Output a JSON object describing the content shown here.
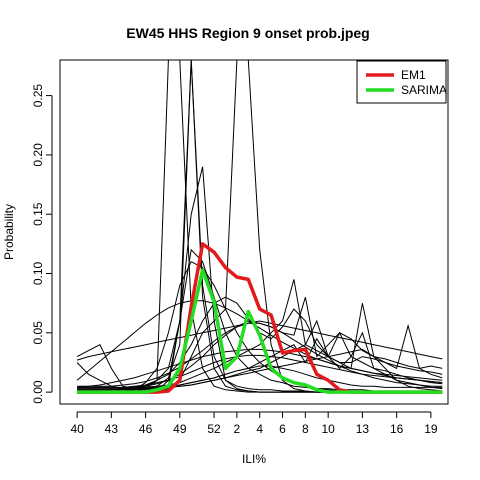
{
  "chart_data": {
    "type": "line",
    "title": "EW45 HHS Region 9 onset prob.jpeg",
    "xlabel": "ILI%",
    "ylabel": "Probability",
    "x_tick_labels": [
      "40",
      "43",
      "46",
      "49",
      "52",
      "2",
      "4",
      "6",
      "8",
      "10",
      "13",
      "16",
      "19"
    ],
    "x_tick_index": [
      0,
      3,
      6,
      9,
      12,
      14,
      16,
      18,
      20,
      22,
      25,
      28,
      31
    ],
    "x_domain": [
      -1.5,
      32.5
    ],
    "ylim": [
      -0.01,
      0.28
    ],
    "y_ticks": [
      "0.00",
      "0.05",
      "0.10",
      "0.15",
      "0.20",
      "0.25"
    ],
    "y_tick_values": [
      0,
      0.05,
      0.1,
      0.15,
      0.2,
      0.25
    ],
    "legend_position": "top-right",
    "series": [
      {
        "name": "EM1",
        "color": "#e31a1c",
        "values": [
          0,
          0,
          0,
          0,
          0,
          0,
          0,
          0,
          0.001,
          0.01,
          0.072,
          0.125,
          0.118,
          0.105,
          0.097,
          0.095,
          0.07,
          0.065,
          0.033,
          0.035,
          0.036,
          0.015,
          0.01,
          0.002,
          0,
          0,
          0,
          0,
          0,
          0,
          0,
          0,
          0
        ]
      },
      {
        "name": "SARIMA",
        "color": "#22dd22",
        "values": [
          0,
          0,
          0,
          0,
          0,
          0,
          0,
          0.002,
          0.005,
          0.02,
          0.06,
          0.103,
          0.076,
          0.02,
          0.03,
          0.068,
          0.048,
          0.02,
          0.012,
          0.008,
          0.006,
          0.002,
          0,
          0,
          0,
          0,
          0,
          0,
          0,
          0,
          0,
          0,
          0
        ]
      }
    ],
    "background_series_color": "#000000",
    "background_series": [
      [
        0.004,
        0.004,
        0.004,
        0.004,
        0.004,
        0.004,
        0.004,
        0.005,
        0.005,
        0.006,
        0.008,
        0.01,
        0.012,
        0.015,
        0.018,
        0.02,
        0.022,
        0.022,
        0.02,
        0.018,
        0.015,
        0.012,
        0.01,
        0.008,
        0.006,
        0.005,
        0.005,
        0.004,
        0.004,
        0.004,
        0.004,
        0.004,
        0.004
      ],
      [
        0.01,
        0.018,
        0.026,
        0.034,
        0.042,
        0.05,
        0.058,
        0.065,
        0.071,
        0.075,
        0.077,
        0.077,
        0.075,
        0.071,
        0.066,
        0.06,
        0.054,
        0.048,
        0.042,
        0.037,
        0.032,
        0.028,
        0.025,
        0.022,
        0.02,
        0.018,
        0.016,
        0.015,
        0.014,
        0.013,
        0.012,
        0.011,
        0.01
      ],
      [
        0.004,
        0.005,
        0.006,
        0.008,
        0.01,
        0.012,
        0.015,
        0.018,
        0.021,
        0.024,
        0.027,
        0.03,
        0.032,
        0.034,
        0.035,
        0.036,
        0.036,
        0.035,
        0.034,
        0.032,
        0.03,
        0.028,
        0.025,
        0.022,
        0.02,
        0.018,
        0.016,
        0.014,
        0.012,
        0.011,
        0.01,
        0.009,
        0.008
      ],
      [
        0.03,
        0.035,
        0.04,
        0.02,
        0.005,
        0.003,
        0.005,
        0.01,
        0.02,
        0.06,
        0.12,
        0.11,
        0.08,
        0.05,
        0.03,
        0.02,
        0.015,
        0.01,
        0.008,
        0.005,
        0.004,
        0.003,
        0.003,
        0.002,
        0.002,
        0.002,
        0.001,
        0.001,
        0.001,
        0.001,
        0.001,
        0.001,
        0.001
      ],
      [
        0.025,
        0.015,
        0.01,
        0.005,
        0.003,
        0.003,
        0.003,
        0.005,
        0.012,
        0.04,
        0.28,
        0.09,
        0.03,
        0.01,
        0.005,
        0.003,
        0.002,
        0.002,
        0.001,
        0.001,
        0.001,
        0,
        0,
        0,
        0,
        0,
        0,
        0,
        0,
        0,
        0,
        0,
        0
      ],
      [
        0,
        0,
        0,
        0,
        0,
        0,
        0,
        0.002,
        0.005,
        0.06,
        0.28,
        0.08,
        0.02,
        0.005,
        0.002,
        0.001,
        0,
        0,
        0,
        0,
        0,
        0,
        0,
        0,
        0,
        0,
        0,
        0,
        0,
        0,
        0,
        0,
        0
      ],
      [
        0,
        0,
        0,
        0,
        0,
        0,
        0.003,
        0.01,
        0.28,
        0.28,
        0.07,
        0.02,
        0.005,
        0.002,
        0.001,
        0,
        0,
        0,
        0,
        0,
        0,
        0,
        0,
        0,
        0,
        0,
        0,
        0,
        0,
        0,
        0,
        0,
        0
      ],
      [
        0,
        0,
        0,
        0,
        0,
        0,
        0,
        0.001,
        0.003,
        0.01,
        0.03,
        0.05,
        0.06,
        0.07,
        0.28,
        0.28,
        0.12,
        0.04,
        0.01,
        0.003,
        0.001,
        0,
        0,
        0,
        0,
        0,
        0,
        0,
        0,
        0,
        0,
        0,
        0
      ],
      [
        0,
        0,
        0,
        0,
        0,
        0,
        0,
        0.001,
        0.01,
        0.06,
        0.15,
        0.19,
        0.06,
        0.01,
        0.003,
        0.001,
        0,
        0,
        0,
        0,
        0,
        0,
        0,
        0,
        0,
        0,
        0,
        0,
        0,
        0,
        0,
        0,
        0
      ],
      [
        0,
        0,
        0,
        0,
        0,
        0.002,
        0.008,
        0.02,
        0.05,
        0.09,
        0.11,
        0.105,
        0.09,
        0.07,
        0.05,
        0.035,
        0.025,
        0.018,
        0.012,
        0.008,
        0.005,
        0.003,
        0.002,
        0.001,
        0.001,
        0,
        0,
        0,
        0,
        0,
        0,
        0,
        0
      ],
      [
        0.002,
        0.002,
        0.002,
        0.002,
        0.003,
        0.004,
        0.006,
        0.01,
        0.015,
        0.025,
        0.04,
        0.06,
        0.075,
        0.08,
        0.075,
        0.062,
        0.05,
        0.045,
        0.055,
        0.07,
        0.06,
        0.04,
        0.03,
        0.025,
        0.025,
        0.03,
        0.028,
        0.025,
        0.022,
        0.02,
        0.018,
        0.017,
        0.015
      ],
      [
        0.003,
        0.003,
        0.003,
        0.003,
        0.003,
        0.004,
        0.005,
        0.007,
        0.01,
        0.015,
        0.022,
        0.03,
        0.04,
        0.048,
        0.055,
        0.06,
        0.058,
        0.055,
        0.05,
        0.048,
        0.08,
        0.03,
        0.04,
        0.05,
        0.045,
        0.035,
        0.03,
        0.028,
        0.025,
        0.022,
        0.02,
        0.022,
        0.02
      ],
      [
        0.002,
        0.002,
        0.002,
        0.002,
        0.002,
        0.003,
        0.004,
        0.005,
        0.006,
        0.008,
        0.012,
        0.016,
        0.02,
        0.025,
        0.03,
        0.035,
        0.04,
        0.05,
        0.06,
        0.095,
        0.04,
        0.035,
        0.03,
        0.05,
        0.03,
        0.025,
        0.02,
        0.018,
        0.015,
        0.012,
        0.01,
        0.008,
        0.007
      ],
      [
        0.001,
        0.001,
        0.001,
        0.001,
        0.001,
        0.002,
        0.003,
        0.004,
        0.005,
        0.006,
        0.008,
        0.01,
        0.012,
        0.015,
        0.018,
        0.02,
        0.025,
        0.03,
        0.035,
        0.04,
        0.025,
        0.045,
        0.03,
        0.02,
        0.03,
        0.05,
        0.02,
        0.015,
        0.01,
        0.008,
        0.006,
        0.004,
        0.003
      ],
      [
        0.001,
        0.001,
        0.001,
        0.001,
        0.001,
        0.002,
        0.002,
        0.003,
        0.004,
        0.005,
        0.006,
        0.008,
        0.01,
        0.012,
        0.015,
        0.018,
        0.02,
        0.025,
        0.03,
        0.035,
        0.04,
        0.06,
        0.03,
        0.025,
        0.02,
        0.075,
        0.03,
        0.02,
        0.01,
        0.005,
        0.003,
        0.002,
        0.001
      ],
      [
        0.002,
        0.002,
        0.002,
        0.002,
        0.002,
        0.002,
        0.003,
        0.003,
        0.004,
        0.005,
        0.006,
        0.008,
        0.01,
        0.012,
        0.014,
        0.016,
        0.018,
        0.02,
        0.022,
        0.024,
        0.026,
        0.028,
        0.03,
        0.032,
        0.034,
        0.036,
        0.03,
        0.025,
        0.02,
        0.056,
        0.02,
        0.015,
        0.012
      ],
      [
        0.004,
        0.004,
        0.004,
        0.004,
        0.004,
        0.005,
        0.006,
        0.008,
        0.01,
        0.013,
        0.017,
        0.021,
        0.025,
        0.028,
        0.03,
        0.031,
        0.031,
        0.03,
        0.029,
        0.027,
        0.025,
        0.023,
        0.021,
        0.019,
        0.017,
        0.015,
        0.014,
        0.013,
        0.012,
        0.011,
        0.01,
        0.009,
        0.008
      ],
      [
        0.005,
        0.005,
        0.005,
        0.005,
        0.006,
        0.007,
        0.009,
        0.012,
        0.016,
        0.021,
        0.028,
        0.035,
        0.043,
        0.05,
        0.055,
        0.058,
        0.058,
        0.055,
        0.05,
        0.044,
        0.038,
        0.032,
        0.027,
        0.022,
        0.018,
        0.015,
        0.012,
        0.01,
        0.008,
        0.007,
        0.006,
        0.005,
        0.005
      ],
      [
        0.027,
        0.03,
        0.032,
        0.034,
        0.036,
        0.038,
        0.04,
        0.042,
        0.044,
        0.046,
        0.048,
        0.05,
        0.052,
        0.054,
        0.056,
        0.058,
        0.06,
        0.058,
        0.056,
        0.054,
        0.052,
        0.05,
        0.048,
        0.046,
        0.044,
        0.042,
        0.04,
        0.038,
        0.036,
        0.034,
        0.032,
        0.03,
        0.028
      ]
    ]
  }
}
